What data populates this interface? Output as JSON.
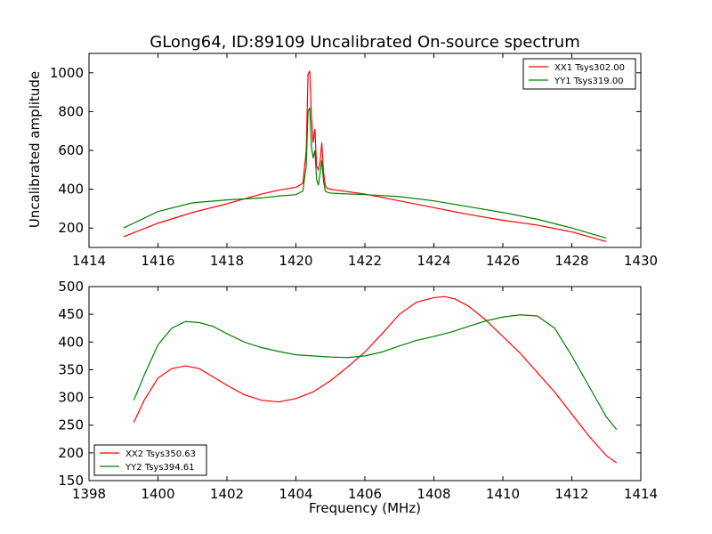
{
  "colors": {
    "red": "#ff0000",
    "green": "#008000",
    "frame": "#000000",
    "background": "#ffffff"
  },
  "chart_data": [
    {
      "type": "line",
      "title": "GLong64, ID:89109 Uncalibrated On-source spectrum",
      "xlabel": "",
      "ylabel": "Uncalibrated amplitude",
      "xlim": [
        1414,
        1430
      ],
      "ylim": [
        100,
        1100
      ],
      "xticks": [
        1414,
        1416,
        1418,
        1420,
        1422,
        1424,
        1426,
        1428,
        1430
      ],
      "yticks": [
        200,
        400,
        600,
        800,
        1000
      ],
      "grid": false,
      "legend_position": "top-right",
      "series": [
        {
          "name": "XX1 Tsys302.00",
          "color": "#ff0000",
          "x": [
            1415.0,
            1416.0,
            1417.0,
            1418.0,
            1419.0,
            1419.5,
            1420.0,
            1420.2,
            1420.3,
            1420.35,
            1420.4,
            1420.45,
            1420.5,
            1420.55,
            1420.6,
            1420.65,
            1420.7,
            1420.75,
            1420.8,
            1420.85,
            1420.9,
            1421.0,
            1421.2,
            1422.0,
            1423.0,
            1424.0,
            1425.0,
            1426.0,
            1427.0,
            1428.0,
            1429.0
          ],
          "y": [
            155,
            225,
            280,
            325,
            375,
            395,
            410,
            430,
            600,
            990,
            1010,
            780,
            640,
            710,
            520,
            500,
            540,
            640,
            490,
            420,
            405,
            400,
            395,
            375,
            340,
            305,
            270,
            240,
            215,
            180,
            130
          ]
        },
        {
          "name": "YY1 Tsys319.00",
          "color": "#008000",
          "x": [
            1415.0,
            1416.0,
            1417.0,
            1418.0,
            1419.0,
            1419.5,
            1420.0,
            1420.2,
            1420.3,
            1420.35,
            1420.4,
            1420.45,
            1420.5,
            1420.55,
            1420.6,
            1420.65,
            1420.7,
            1420.75,
            1420.8,
            1420.85,
            1420.9,
            1421.0,
            1421.2,
            1422.0,
            1423.0,
            1424.0,
            1425.0,
            1426.0,
            1427.0,
            1428.0,
            1429.0
          ],
          "y": [
            200,
            285,
            330,
            345,
            355,
            365,
            372,
            390,
            520,
            800,
            820,
            620,
            560,
            600,
            450,
            420,
            480,
            550,
            440,
            390,
            385,
            380,
            378,
            372,
            362,
            340,
            310,
            280,
            245,
            200,
            148
          ]
        }
      ]
    },
    {
      "type": "line",
      "title": "",
      "xlabel": "Frequency (MHz)",
      "ylabel": "",
      "xlim": [
        1398,
        1414
      ],
      "ylim": [
        150,
        500
      ],
      "xticks": [
        1398,
        1400,
        1402,
        1404,
        1406,
        1408,
        1410,
        1412,
        1414
      ],
      "yticks": [
        150,
        200,
        250,
        300,
        350,
        400,
        450,
        500
      ],
      "grid": false,
      "legend_position": "bottom-left",
      "series": [
        {
          "name": "XX2 Tsys350.63",
          "color": "#ff0000",
          "x": [
            1399.3,
            1399.6,
            1400.0,
            1400.4,
            1400.8,
            1401.2,
            1401.6,
            1402.0,
            1402.5,
            1403.0,
            1403.5,
            1404.0,
            1404.5,
            1405.0,
            1405.5,
            1406.0,
            1406.5,
            1407.0,
            1407.5,
            1408.0,
            1408.3,
            1408.6,
            1409.0,
            1409.5,
            1410.0,
            1410.5,
            1411.0,
            1411.5,
            1412.0,
            1412.5,
            1413.0,
            1413.3
          ],
          "y": [
            255,
            295,
            335,
            352,
            357,
            352,
            337,
            322,
            305,
            295,
            292,
            298,
            310,
            330,
            355,
            382,
            415,
            450,
            472,
            480,
            482,
            478,
            465,
            440,
            410,
            380,
            345,
            310,
            270,
            230,
            195,
            182
          ]
        },
        {
          "name": "YY2 Tsys394.61",
          "color": "#008000",
          "x": [
            1399.3,
            1399.6,
            1400.0,
            1400.4,
            1400.8,
            1401.2,
            1401.6,
            1402.0,
            1402.5,
            1403.0,
            1403.5,
            1404.0,
            1404.5,
            1405.0,
            1405.5,
            1406.0,
            1406.5,
            1407.0,
            1407.5,
            1408.0,
            1408.5,
            1409.0,
            1409.5,
            1410.0,
            1410.5,
            1411.0,
            1411.5,
            1412.0,
            1412.5,
            1413.0,
            1413.3
          ],
          "y": [
            295,
            340,
            395,
            425,
            437,
            435,
            428,
            415,
            400,
            390,
            383,
            377,
            375,
            373,
            372,
            375,
            382,
            393,
            403,
            410,
            418,
            428,
            438,
            445,
            449,
            447,
            425,
            375,
            320,
            265,
            242
          ]
        }
      ]
    }
  ]
}
